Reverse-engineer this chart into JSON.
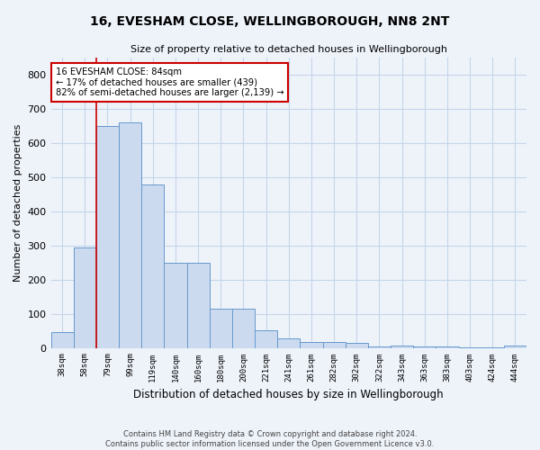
{
  "title": "16, EVESHAM CLOSE, WELLINGBOROUGH, NN8 2NT",
  "subtitle": "Size of property relative to detached houses in Wellingborough",
  "xlabel": "Distribution of detached houses by size in Wellingborough",
  "ylabel": "Number of detached properties",
  "footer_line1": "Contains HM Land Registry data © Crown copyright and database right 2024.",
  "footer_line2": "Contains public sector information licensed under the Open Government Licence v3.0.",
  "categories": [
    "38sqm",
    "58sqm",
    "79sqm",
    "99sqm",
    "119sqm",
    "140sqm",
    "160sqm",
    "180sqm",
    "200sqm",
    "221sqm",
    "241sqm",
    "261sqm",
    "282sqm",
    "302sqm",
    "322sqm",
    "343sqm",
    "363sqm",
    "383sqm",
    "403sqm",
    "424sqm",
    "444sqm"
  ],
  "values": [
    46,
    293,
    648,
    660,
    478,
    248,
    248,
    115,
    115,
    52,
    27,
    18,
    18,
    14,
    5,
    6,
    5,
    4,
    2,
    1,
    8
  ],
  "bar_color": "#ccdaf0",
  "bar_edge_color": "#6699cc",
  "grid_color": "#c5d5e8",
  "background_color": "#eef3fa",
  "vline_color": "#cc0000",
  "vline_x": 1.5,
  "annotation_line1": "16 EVESHAM CLOSE: 84sqm",
  "annotation_line2": "← 17% of detached houses are smaller (439)",
  "annotation_line3": "82% of semi-detached houses are larger (2,139) →",
  "annotation_box_color": "#ffffff",
  "annotation_box_edge": "#cc0000",
  "ylim": [
    0,
    850
  ],
  "yticks": [
    0,
    100,
    200,
    300,
    400,
    500,
    600,
    700,
    800
  ]
}
